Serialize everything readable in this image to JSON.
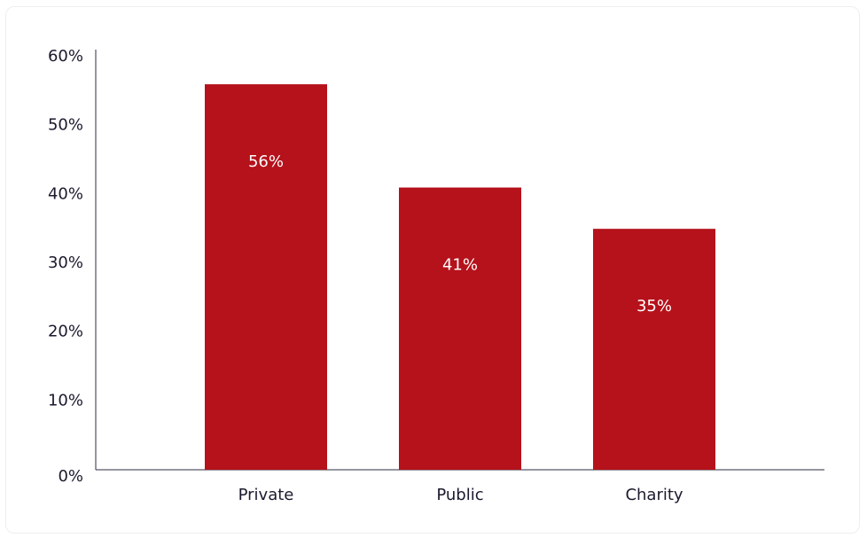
{
  "chart_data": {
    "type": "bar",
    "categories": [
      "Private",
      "Public",
      "Charity"
    ],
    "values": [
      56,
      41,
      35
    ],
    "data_labels": [
      "56%",
      "41%",
      "35%"
    ],
    "title": "",
    "xlabel": "",
    "ylabel": "",
    "ylim": [
      0,
      60
    ],
    "yticks": [
      0,
      10,
      20,
      30,
      40,
      50,
      60
    ],
    "ytick_labels": [
      "0%",
      "10%",
      "20%",
      "30%",
      "40%",
      "50%",
      "60%"
    ],
    "grid": false,
    "legend": "none",
    "colors": {
      "bar": "#b5121b",
      "axis": "#2b2d42",
      "text": "#1a1a2e",
      "data_label": "#ffffff"
    }
  }
}
